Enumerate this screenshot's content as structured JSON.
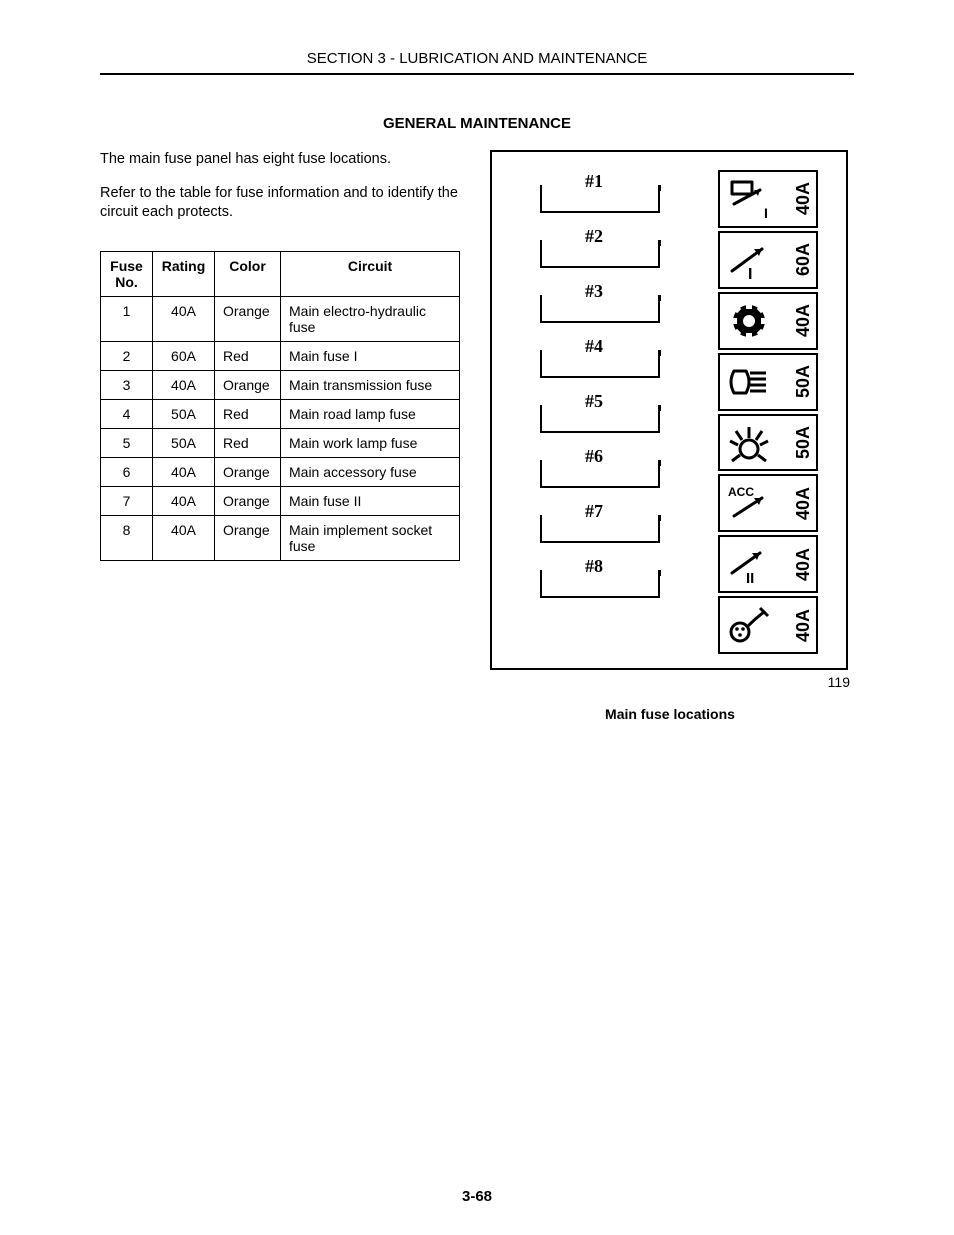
{
  "section_header": "SECTION 3 - LUBRICATION AND MAINTENANCE",
  "title": "GENERAL MAINTENANCE",
  "para1": "The main fuse panel has eight fuse locations.",
  "para2": "Refer to the table for fuse information and to identify the circuit each protects.",
  "table": {
    "headers": {
      "no": "Fuse No.",
      "rating": "Rating",
      "color": "Color",
      "circuit": "Circuit"
    },
    "rows": [
      {
        "no": "1",
        "rating": "40A",
        "color": "Orange",
        "circuit": "Main electro-hydraulic fuse"
      },
      {
        "no": "2",
        "rating": "60A",
        "color": "Red",
        "circuit": "Main fuse I"
      },
      {
        "no": "3",
        "rating": "40A",
        "color": "Orange",
        "circuit": "Main transmission fuse"
      },
      {
        "no": "4",
        "rating": "50A",
        "color": "Red",
        "circuit": "Main road lamp fuse"
      },
      {
        "no": "5",
        "rating": "50A",
        "color": "Red",
        "circuit": "Main work lamp fuse"
      },
      {
        "no": "6",
        "rating": "40A",
        "color": "Orange",
        "circuit": "Main accessory fuse"
      },
      {
        "no": "7",
        "rating": "40A",
        "color": "Orange",
        "circuit": "Main fuse II"
      },
      {
        "no": "8",
        "rating": "40A",
        "color": "Orange",
        "circuit": "Main implement socket fuse"
      }
    ]
  },
  "diagram": {
    "slot_labels": [
      "#1",
      "#2",
      "#3",
      "#4",
      "#5",
      "#6",
      "#7",
      "#8"
    ],
    "icons": [
      {
        "name": "hydraulic-icon",
        "amp": "40A"
      },
      {
        "name": "fuse-i-icon",
        "amp": "60A"
      },
      {
        "name": "transmission-icon",
        "amp": "40A"
      },
      {
        "name": "road-lamp-icon",
        "amp": "50A"
      },
      {
        "name": "work-lamp-icon",
        "amp": "50A"
      },
      {
        "name": "accessory-icon",
        "amp": "40A"
      },
      {
        "name": "fuse-ii-icon",
        "amp": "40A"
      },
      {
        "name": "implement-socket-icon",
        "amp": "40A"
      }
    ],
    "figure_number": "119",
    "caption": "Main fuse locations"
  },
  "page_number": "3-68",
  "colors": {
    "text": "#000000",
    "background": "#ffffff",
    "border": "#000000"
  }
}
